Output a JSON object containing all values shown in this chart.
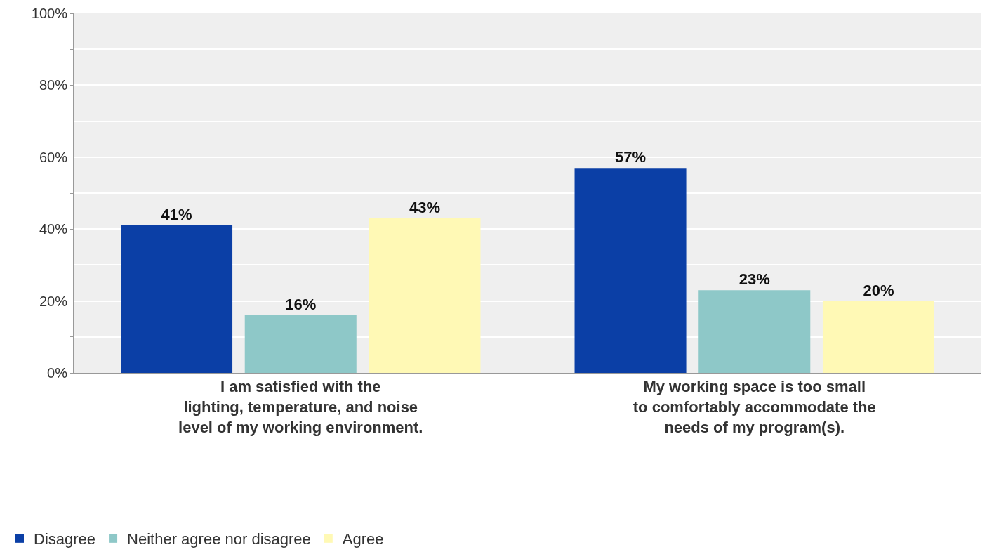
{
  "chart_data": {
    "type": "bar",
    "categories": [
      "I am satisfied with the\nlighting, temperature, and noise\nlevel of my working environment.",
      "My working space is too small\nto comfortably accommodate the\nneeds of my program(s)."
    ],
    "series": [
      {
        "name": "Disagree",
        "color": "#0b3fa6",
        "values": [
          41,
          57
        ]
      },
      {
        "name": "Neither agree nor disagree",
        "color": "#8ec8c8",
        "values": [
          16,
          23
        ]
      },
      {
        "name": "Agree",
        "color": "#fff9b5",
        "values": [
          43,
          20
        ]
      }
    ],
    "ylim": [
      0,
      100
    ],
    "yticks": [
      {
        "value": 0,
        "label": "0%"
      },
      {
        "value": 10,
        "label": null
      },
      {
        "value": 20,
        "label": "20%"
      },
      {
        "value": 30,
        "label": null
      },
      {
        "value": 40,
        "label": "40%"
      },
      {
        "value": 50,
        "label": null
      },
      {
        "value": 60,
        "label": "60%"
      },
      {
        "value": 70,
        "label": null
      },
      {
        "value": 80,
        "label": "80%"
      },
      {
        "value": 90,
        "label": null
      },
      {
        "value": 100,
        "label": "100%"
      }
    ],
    "value_labels": [
      [
        "41%",
        "57%"
      ],
      [
        "16%",
        "23%"
      ],
      [
        "43%",
        "20%"
      ]
    ],
    "grid": "y",
    "legend": "bottom left"
  }
}
